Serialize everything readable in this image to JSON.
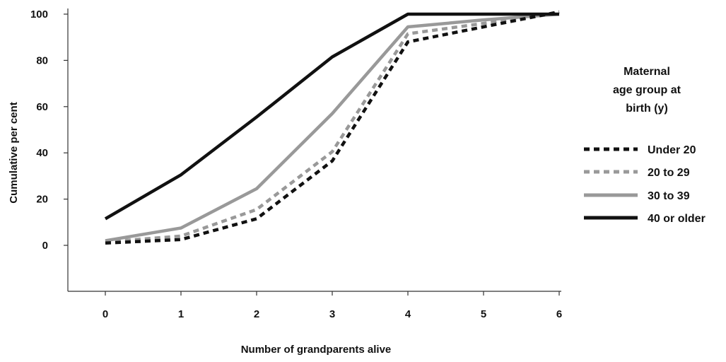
{
  "chart_data": {
    "type": "line",
    "xlabel": "Number of grandparents alive",
    "ylabel": "Cumulative per cent",
    "x": [
      0,
      1,
      2,
      3,
      4,
      5,
      6
    ],
    "xlim": [
      -0.5,
      6
    ],
    "ylim": [
      -20,
      100
    ],
    "y_ticks": [
      0,
      20,
      40,
      60,
      80,
      100
    ],
    "x_ticks": [
      0,
      1,
      2,
      3,
      4,
      5,
      6
    ],
    "grid": false,
    "legend": {
      "title_lines": [
        "Maternal",
        "age group at",
        "birth (y)"
      ],
      "placement": "right"
    },
    "series": [
      {
        "name": "Under 20",
        "values": [
          1,
          2.5,
          11.5,
          36.5,
          88,
          94.5,
          101
        ],
        "color": "#111111",
        "style": "dashed"
      },
      {
        "name": "20 to 29",
        "values": [
          1.5,
          4,
          15.5,
          40.5,
          91.5,
          96,
          100.5
        ],
        "color": "#999999",
        "style": "dashed"
      },
      {
        "name": "30 to 39",
        "values": [
          2,
          7.5,
          24.5,
          57,
          94.5,
          97.5,
          100
        ],
        "color": "#999999",
        "style": "solid"
      },
      {
        "name": "40 or older",
        "values": [
          11.5,
          30.5,
          55.5,
          81.5,
          100,
          100,
          100
        ],
        "color": "#111111",
        "style": "solid"
      }
    ]
  }
}
